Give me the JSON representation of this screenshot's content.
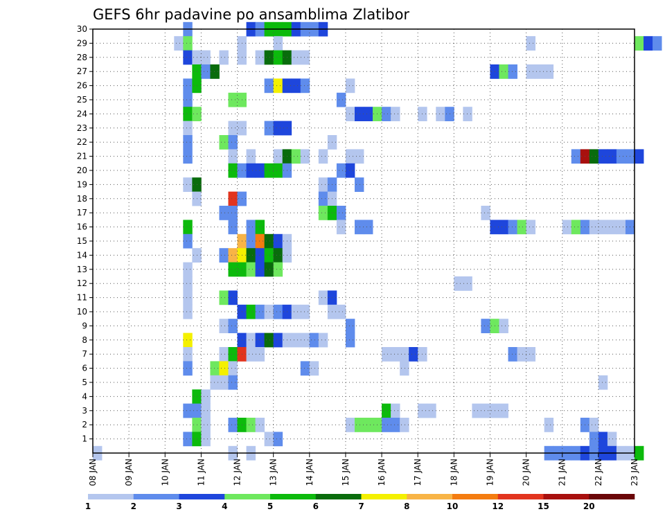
{
  "chart_data": {
    "type": "heatmap",
    "title": "GEFS 6hr padavine po ansamblima Zlatibor",
    "x_tick_labels": [
      "08 JAN",
      "09 JAN",
      "10 JAN",
      "11 JAN",
      "12 JAN",
      "13 JAN",
      "14 JAN",
      "15 JAN",
      "16 JAN",
      "17 JAN",
      "18 JAN",
      "19 JAN",
      "20 JAN",
      "21 JAN",
      "22 JAN",
      "23 JAN"
    ],
    "y_tick_labels": [
      "1",
      "2",
      "3",
      "4",
      "5",
      "6",
      "7",
      "8",
      "9",
      "10",
      "11",
      "12",
      "13",
      "14",
      "15",
      "16",
      "17",
      "18",
      "19",
      "20",
      "21",
      "22",
      "23",
      "24",
      "25",
      "26",
      "27",
      "28",
      "29",
      "30"
    ],
    "x_range_days": [
      0,
      15
    ],
    "time_step_hours": 6,
    "y_range": [
      0,
      30
    ],
    "grid": true,
    "legend": {
      "placement": "bottom",
      "labels": [
        "1",
        "2",
        "3",
        "4",
        "5",
        "6",
        "7",
        "8",
        "10",
        "12",
        "15",
        "20"
      ],
      "colors": [
        "#b4c6ee",
        "#5f8cec",
        "#1e46dc",
        "#6ee85e",
        "#0cba0c",
        "#096c0c",
        "#f4f000",
        "#f8b446",
        "#f47c10",
        "#e2341e",
        "#a8100e",
        "#6a0608"
      ]
    },
    "cells": [
      {
        "m": 30,
        "s": [
          [
            10,
            1
          ],
          [
            17,
            2
          ],
          [
            18,
            1
          ],
          [
            19,
            4
          ],
          [
            20,
            4
          ],
          [
            21,
            4
          ],
          [
            22,
            2
          ],
          [
            23,
            1
          ],
          [
            24,
            1
          ],
          [
            25,
            2
          ]
        ]
      },
      {
        "m": 29,
        "s": [
          [
            9,
            0
          ],
          [
            10,
            3
          ],
          [
            16,
            0
          ],
          [
            20,
            0
          ],
          [
            48,
            0
          ],
          [
            60,
            3
          ],
          [
            61,
            2
          ],
          [
            62,
            1
          ]
        ]
      },
      {
        "m": 28,
        "s": [
          [
            10,
            2
          ],
          [
            11,
            0
          ],
          [
            12,
            0
          ],
          [
            14,
            0
          ],
          [
            16,
            0
          ],
          [
            18,
            0
          ],
          [
            19,
            5
          ],
          [
            20,
            4
          ],
          [
            21,
            5
          ],
          [
            22,
            0
          ],
          [
            23,
            0
          ]
        ]
      },
      {
        "m": 27,
        "s": [
          [
            11,
            4
          ],
          [
            12,
            1
          ],
          [
            13,
            5
          ],
          [
            44,
            2
          ],
          [
            45,
            3
          ],
          [
            46,
            1
          ],
          [
            48,
            0
          ],
          [
            49,
            0
          ],
          [
            50,
            0
          ]
        ]
      },
      {
        "m": 26,
        "s": [
          [
            10,
            1
          ],
          [
            11,
            4
          ],
          [
            19,
            1
          ],
          [
            20,
            6
          ],
          [
            21,
            2
          ],
          [
            22,
            2
          ],
          [
            23,
            1
          ],
          [
            28,
            0
          ]
        ]
      },
      {
        "m": 25,
        "s": [
          [
            10,
            1
          ],
          [
            15,
            3
          ],
          [
            16,
            3
          ],
          [
            27,
            1
          ]
        ]
      },
      {
        "m": 24,
        "s": [
          [
            10,
            4
          ],
          [
            11,
            3
          ],
          [
            28,
            0
          ],
          [
            29,
            2
          ],
          [
            30,
            2
          ],
          [
            31,
            3
          ],
          [
            32,
            1
          ],
          [
            33,
            0
          ],
          [
            36,
            0
          ],
          [
            38,
            0
          ],
          [
            39,
            1
          ],
          [
            41,
            0
          ]
        ]
      },
      {
        "m": 23,
        "s": [
          [
            10,
            0
          ],
          [
            15,
            0
          ],
          [
            16,
            0
          ],
          [
            19,
            1
          ],
          [
            20,
            2
          ],
          [
            21,
            2
          ]
        ]
      },
      {
        "m": 22,
        "s": [
          [
            10,
            1
          ],
          [
            14,
            3
          ],
          [
            15,
            1
          ],
          [
            26,
            0
          ]
        ]
      },
      {
        "m": 21,
        "s": [
          [
            10,
            1
          ],
          [
            15,
            0
          ],
          [
            17,
            0
          ],
          [
            20,
            0
          ],
          [
            21,
            5
          ],
          [
            22,
            3
          ],
          [
            23,
            0
          ],
          [
            25,
            0
          ],
          [
            28,
            0
          ],
          [
            29,
            0
          ],
          [
            53,
            1
          ],
          [
            54,
            10
          ],
          [
            55,
            5
          ],
          [
            56,
            2
          ],
          [
            57,
            2
          ],
          [
            58,
            1
          ],
          [
            59,
            1
          ],
          [
            60,
            2
          ]
        ]
      },
      {
        "m": 20,
        "s": [
          [
            15,
            4
          ],
          [
            16,
            1
          ],
          [
            17,
            2
          ],
          [
            18,
            2
          ],
          [
            19,
            4
          ],
          [
            20,
            4
          ],
          [
            21,
            1
          ],
          [
            27,
            1
          ],
          [
            28,
            2
          ]
        ]
      },
      {
        "m": 19,
        "s": [
          [
            10,
            0
          ],
          [
            11,
            5
          ],
          [
            25,
            0
          ],
          [
            26,
            1
          ],
          [
            29,
            1
          ]
        ]
      },
      {
        "m": 18,
        "s": [
          [
            11,
            0
          ],
          [
            15,
            9
          ],
          [
            16,
            1
          ],
          [
            25,
            1
          ],
          [
            26,
            0
          ]
        ]
      },
      {
        "m": 17,
        "s": [
          [
            14,
            1
          ],
          [
            15,
            1
          ],
          [
            25,
            3
          ],
          [
            26,
            4
          ],
          [
            27,
            1
          ],
          [
            43,
            0
          ]
        ]
      },
      {
        "m": 16,
        "s": [
          [
            10,
            4
          ],
          [
            15,
            1
          ],
          [
            17,
            1
          ],
          [
            18,
            4
          ],
          [
            27,
            0
          ],
          [
            29,
            1
          ],
          [
            30,
            1
          ],
          [
            44,
            2
          ],
          [
            45,
            2
          ],
          [
            46,
            1
          ],
          [
            47,
            3
          ],
          [
            48,
            0
          ],
          [
            52,
            0
          ],
          [
            53,
            3
          ],
          [
            54,
            1
          ],
          [
            55,
            0
          ],
          [
            56,
            0
          ],
          [
            57,
            0
          ],
          [
            58,
            0
          ],
          [
            59,
            1
          ]
        ]
      },
      {
        "m": 15,
        "s": [
          [
            10,
            1
          ],
          [
            16,
            7
          ],
          [
            17,
            1
          ],
          [
            18,
            8
          ],
          [
            19,
            5
          ],
          [
            20,
            2
          ],
          [
            21,
            0
          ]
        ]
      },
      {
        "m": 14,
        "s": [
          [
            11,
            0
          ],
          [
            14,
            1
          ],
          [
            15,
            7
          ],
          [
            16,
            6
          ],
          [
            17,
            5
          ],
          [
            18,
            2
          ],
          [
            19,
            4
          ],
          [
            20,
            5
          ],
          [
            21,
            0
          ]
        ]
      },
      {
        "m": 13,
        "s": [
          [
            10,
            0
          ],
          [
            15,
            4
          ],
          [
            16,
            4
          ],
          [
            17,
            3
          ],
          [
            18,
            2
          ],
          [
            19,
            5
          ],
          [
            20,
            3
          ]
        ]
      },
      {
        "m": 12,
        "s": [
          [
            10,
            0
          ],
          [
            40,
            0
          ],
          [
            41,
            0
          ]
        ]
      },
      {
        "m": 11,
        "s": [
          [
            10,
            0
          ],
          [
            14,
            3
          ],
          [
            15,
            2
          ],
          [
            25,
            0
          ],
          [
            26,
            2
          ]
        ]
      },
      {
        "m": 10,
        "s": [
          [
            10,
            0
          ],
          [
            16,
            2
          ],
          [
            17,
            4
          ],
          [
            18,
            1
          ],
          [
            19,
            0
          ],
          [
            20,
            1
          ],
          [
            21,
            2
          ],
          [
            22,
            0
          ],
          [
            23,
            0
          ],
          [
            26,
            0
          ],
          [
            27,
            0
          ]
        ]
      },
      {
        "m": 9,
        "s": [
          [
            14,
            0
          ],
          [
            15,
            1
          ],
          [
            28,
            1
          ],
          [
            43,
            1
          ],
          [
            44,
            3
          ],
          [
            45,
            0
          ]
        ]
      },
      {
        "m": 8,
        "s": [
          [
            10,
            6
          ],
          [
            16,
            2
          ],
          [
            17,
            0
          ],
          [
            18,
            2
          ],
          [
            19,
            5
          ],
          [
            20,
            2
          ],
          [
            21,
            0
          ],
          [
            22,
            0
          ],
          [
            23,
            0
          ],
          [
            24,
            1
          ],
          [
            25,
            0
          ],
          [
            28,
            1
          ]
        ]
      },
      {
        "m": 7,
        "s": [
          [
            10,
            0
          ],
          [
            14,
            0
          ],
          [
            15,
            4
          ],
          [
            16,
            9
          ],
          [
            17,
            0
          ],
          [
            18,
            0
          ],
          [
            32,
            0
          ],
          [
            33,
            0
          ],
          [
            34,
            0
          ],
          [
            35,
            2
          ],
          [
            36,
            0
          ],
          [
            46,
            1
          ],
          [
            47,
            0
          ],
          [
            48,
            0
          ]
        ]
      },
      {
        "m": 6,
        "s": [
          [
            10,
            1
          ],
          [
            13,
            3
          ],
          [
            14,
            6
          ],
          [
            15,
            0
          ],
          [
            23,
            1
          ],
          [
            24,
            0
          ],
          [
            34,
            0
          ]
        ]
      },
      {
        "m": 5,
        "s": [
          [
            13,
            0
          ],
          [
            14,
            0
          ],
          [
            15,
            1
          ],
          [
            56,
            0
          ]
        ]
      },
      {
        "m": 4,
        "s": [
          [
            11,
            4
          ],
          [
            12,
            0
          ]
        ]
      },
      {
        "m": 3,
        "s": [
          [
            10,
            1
          ],
          [
            11,
            1
          ],
          [
            12,
            0
          ],
          [
            32,
            4
          ],
          [
            33,
            0
          ],
          [
            36,
            0
          ],
          [
            37,
            0
          ],
          [
            42,
            0
          ],
          [
            43,
            0
          ],
          [
            44,
            0
          ],
          [
            45,
            0
          ]
        ]
      },
      {
        "m": 2,
        "s": [
          [
            11,
            3
          ],
          [
            12,
            0
          ],
          [
            15,
            1
          ],
          [
            16,
            4
          ],
          [
            17,
            3
          ],
          [
            18,
            0
          ],
          [
            28,
            0
          ],
          [
            29,
            3
          ],
          [
            30,
            3
          ],
          [
            31,
            3
          ],
          [
            32,
            1
          ],
          [
            33,
            1
          ],
          [
            34,
            0
          ],
          [
            50,
            0
          ],
          [
            54,
            1
          ],
          [
            55,
            0
          ]
        ]
      },
      {
        "m": 1,
        "s": [
          [
            10,
            1
          ],
          [
            11,
            4
          ],
          [
            12,
            0
          ],
          [
            19,
            0
          ],
          [
            20,
            1
          ],
          [
            55,
            1
          ],
          [
            56,
            2
          ],
          [
            57,
            0
          ]
        ]
      },
      {
        "m": 0,
        "s": [
          [
            0,
            0
          ],
          [
            15,
            0
          ],
          [
            17,
            0
          ],
          [
            50,
            1
          ],
          [
            51,
            1
          ],
          [
            52,
            1
          ],
          [
            53,
            1
          ],
          [
            54,
            2
          ],
          [
            55,
            1
          ],
          [
            56,
            2
          ],
          [
            57,
            2
          ],
          [
            58,
            0
          ],
          [
            59,
            0
          ],
          [
            60,
            4
          ]
        ]
      }
    ]
  }
}
